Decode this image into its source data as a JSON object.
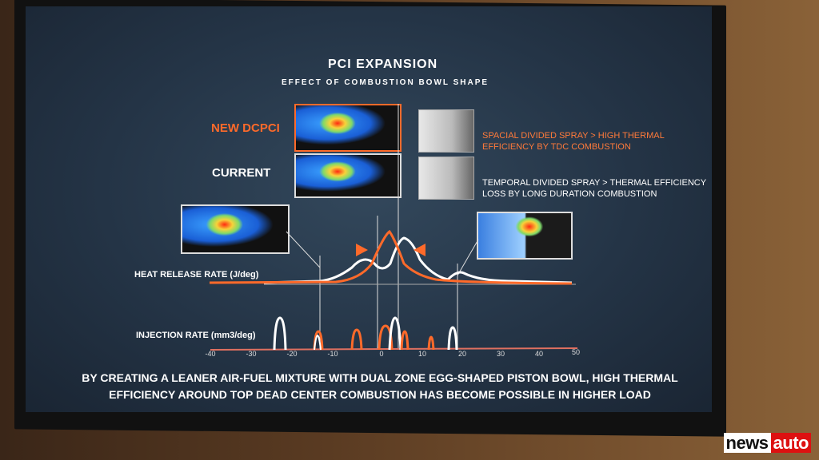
{
  "slide": {
    "title": "PCI EXPANSION",
    "subtitle": "EFFECT OF COMBUSTION BOWL SHAPE",
    "new_label": "NEW DCPCI",
    "current_label": "CURRENT",
    "new_desc": [
      "SPACIAL DIVIDED SPRAY > HIGH THERMAL",
      "EFFICIENCY BY TDC COMBUSTION"
    ],
    "current_desc": [
      "TEMPORAL DIVIDED SPRAY > THERMAL EFFICIENCY",
      "LOSS BY LONG DURATION COMBUSTION"
    ],
    "heat_release_label": "HEAT RELEASE RATE (J/deg)",
    "injection_label": "INJECTION RATE (mm3/deg)",
    "x_ticks": [
      "-40",
      "-30",
      "-20",
      "-10",
      "0",
      "10",
      "20",
      "30",
      "40",
      "50"
    ],
    "footer": [
      "BY CREATING A LEANER AIR-FUEL MIXTURE WITH DUAL ZONE EGG-SHAPED PISTON BOWL, HIGH THERMAL",
      "EFFICIENCY AROUND TOP DEAD CENTER COMBUSTION HAS BECOME POSSIBLE IN HIGHER LOAD"
    ],
    "colors": {
      "new": "#ff6a2a",
      "current": "#ffffff",
      "background": "#243446"
    }
  },
  "watermark": {
    "part1": "news",
    "part2": "auto"
  }
}
